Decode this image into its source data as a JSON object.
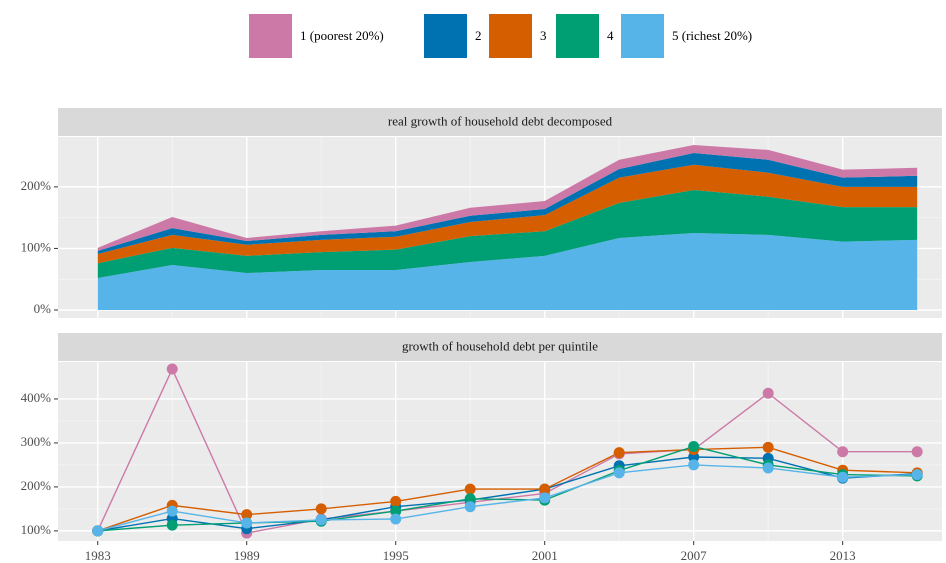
{
  "chart_data": [
    {
      "type": "area",
      "stacked": true,
      "title": "real growth of household debt decomposed",
      "x": [
        1983,
        1986,
        1989,
        1992,
        1995,
        1998,
        2001,
        2004,
        2007,
        2010,
        2013,
        2016
      ],
      "series": [
        {
          "name": "1 (poorest 20%)",
          "color": "#cc79a7",
          "values": [
            5,
            18,
            5,
            6,
            9,
            13,
            13,
            15,
            13,
            16,
            13,
            13
          ]
        },
        {
          "name": "2",
          "color": "#0072b2",
          "values": [
            5,
            11,
            6,
            8,
            9,
            10,
            10,
            14,
            19,
            21,
            15,
            18
          ]
        },
        {
          "name": "3",
          "color": "#d55e00",
          "values": [
            15,
            21,
            18,
            20,
            21,
            23,
            26,
            41,
            41,
            39,
            33,
            33
          ]
        },
        {
          "name": "4",
          "color": "#009e73",
          "values": [
            24,
            28,
            28,
            29,
            33,
            42,
            40,
            57,
            70,
            62,
            56,
            53
          ]
        },
        {
          "name": "5 (richest 20%)",
          "color": "#56b4e9",
          "values": [
            52,
            73,
            60,
            65,
            65,
            78,
            88,
            117,
            125,
            122,
            111,
            114
          ]
        }
      ],
      "xlim": [
        1981.4,
        2017
      ],
      "xticks": [
        1983,
        1989,
        1995,
        2001,
        2007,
        2013
      ],
      "ylim": [
        -13,
        281
      ],
      "yticks": [
        {
          "value": 0,
          "label": "0%"
        },
        {
          "value": 100,
          "label": "100%"
        },
        {
          "value": 200,
          "label": "200%"
        }
      ]
    },
    {
      "type": "line",
      "title": "growth of household debt per quintile",
      "x": [
        1983,
        1986,
        1989,
        1992,
        1995,
        1998,
        2001,
        2004,
        2007,
        2010,
        2013,
        2016
      ],
      "series": [
        {
          "color": "#cc79a7",
          "values": [
            100,
            468,
            95,
            127,
            145,
            165,
            185,
            275,
            285,
            413,
            280,
            280
          ]
        },
        {
          "color": "#0072b2",
          "values": [
            100,
            128,
            105,
            125,
            155,
            170,
            195,
            248,
            268,
            265,
            220,
            230
          ]
        },
        {
          "color": "#d55e00",
          "values": [
            100,
            158,
            137,
            150,
            167,
            195,
            195,
            278,
            285,
            290,
            238,
            232
          ]
        },
        {
          "color": "#009e73",
          "values": [
            100,
            113,
            118,
            122,
            145,
            173,
            170,
            237,
            292,
            250,
            228,
            225
          ]
        },
        {
          "color": "#56b4e9",
          "values": [
            100,
            145,
            118,
            125,
            127,
            155,
            175,
            232,
            250,
            243,
            222,
            228
          ]
        }
      ],
      "xlim": [
        1981.4,
        2017
      ],
      "xticks": [
        1983,
        1989,
        1995,
        2001,
        2007,
        2013
      ],
      "ylim": [
        77,
        484
      ],
      "yticks": [
        {
          "value": 100,
          "label": "100%"
        },
        {
          "value": 200,
          "label": "200%"
        },
        {
          "value": 300,
          "label": "300%"
        },
        {
          "value": 400,
          "label": "400%"
        }
      ]
    }
  ]
}
